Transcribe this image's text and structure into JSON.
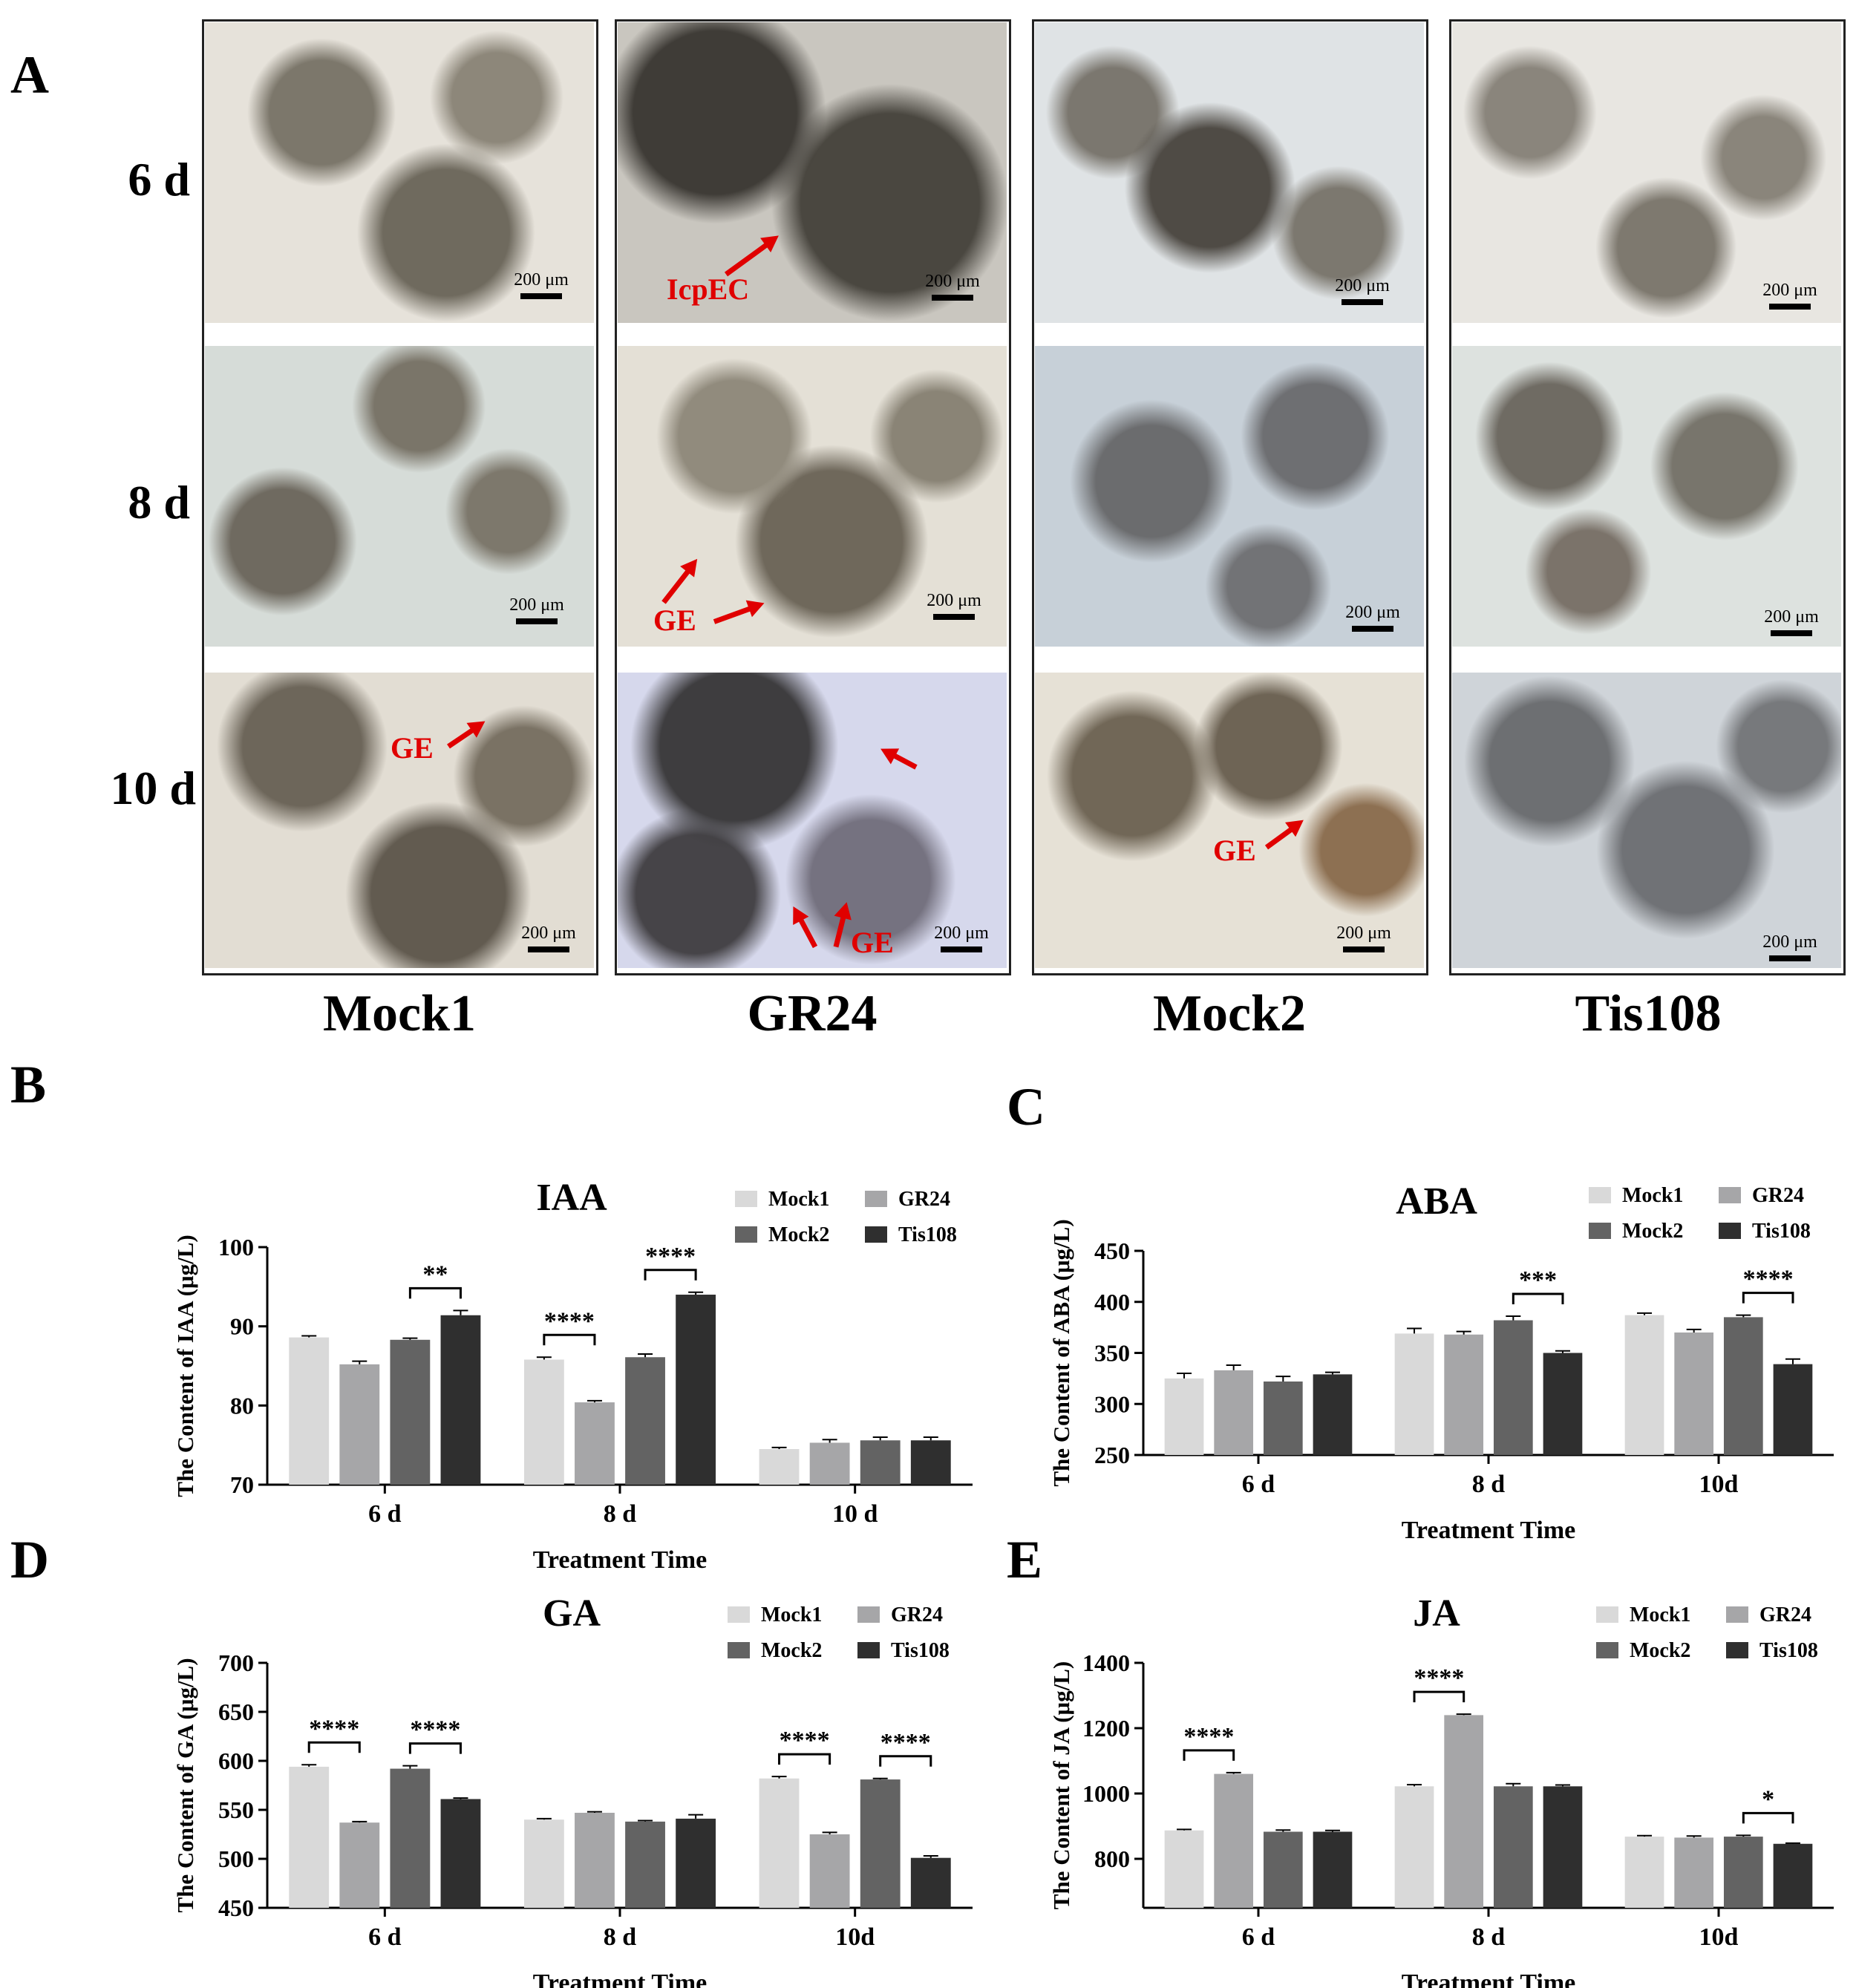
{
  "panel_letters": {
    "a": "A",
    "b": "B",
    "c": "C",
    "d": "D",
    "e": "E"
  },
  "rows": [
    "6 d",
    "8 d",
    "10 d"
  ],
  "columns": [
    "Mock1",
    "GR24",
    "Mock2",
    "Tis108"
  ],
  "scale_bar": "200 μm",
  "annotations": {
    "icpec": "IcpEC",
    "ge": "GE"
  },
  "colors": {
    "Mock1": "#d9d9d9",
    "GR24": "#a6a6a8",
    "Mock2": "#636363",
    "Tis108": "#2f2f2f"
  },
  "chart_data": [
    {
      "type": "bar",
      "panel": "B",
      "title": "IAA",
      "ylabel": "The Content of IAA (μg/L)",
      "xlabel": "Treatment Time",
      "ylim": [
        70,
        100
      ],
      "yticks": [
        70,
        80,
        90,
        100
      ],
      "categories": [
        "6 d",
        "8 d",
        "10 d"
      ],
      "series": [
        {
          "name": "Mock1",
          "values": [
            88.6,
            85.8,
            74.5
          ],
          "err": [
            0.2,
            0.3,
            0.2
          ]
        },
        {
          "name": "GR24",
          "values": [
            85.2,
            80.4,
            75.3
          ],
          "err": [
            0.4,
            0.2,
            0.4
          ]
        },
        {
          "name": "Mock2",
          "values": [
            88.3,
            86.1,
            75.6
          ],
          "err": [
            0.2,
            0.4,
            0.4
          ]
        },
        {
          "name": "Tis108",
          "values": [
            91.4,
            94.0,
            75.6
          ],
          "err": [
            0.6,
            0.3,
            0.4
          ]
        }
      ],
      "significance": [
        {
          "cat": 0,
          "from": 2,
          "to": 3,
          "label": "**"
        },
        {
          "cat": 1,
          "from": 0,
          "to": 1,
          "label": "****"
        },
        {
          "cat": 1,
          "from": 2,
          "to": 3,
          "label": "****"
        }
      ]
    },
    {
      "type": "bar",
      "panel": "C",
      "title": "ABA",
      "ylabel": "The Content of ABA (μg/L)",
      "xlabel": "Treatment Time",
      "ylim": [
        250,
        450
      ],
      "yticks": [
        250,
        300,
        350,
        400,
        450
      ],
      "categories": [
        "6 d",
        "8 d",
        "10d"
      ],
      "series": [
        {
          "name": "Mock1",
          "values": [
            325,
            369,
            387
          ],
          "err": [
            5,
            5,
            2
          ]
        },
        {
          "name": "GR24",
          "values": [
            333,
            368,
            370
          ],
          "err": [
            5,
            3,
            3
          ]
        },
        {
          "name": "Mock2",
          "values": [
            322,
            382,
            385
          ],
          "err": [
            5,
            4,
            2
          ]
        },
        {
          "name": "Tis108",
          "values": [
            329,
            350,
            339
          ],
          "err": [
            2,
            2,
            5
          ]
        }
      ],
      "significance": [
        {
          "cat": 1,
          "from": 2,
          "to": 3,
          "label": "***"
        },
        {
          "cat": 2,
          "from": 2,
          "to": 3,
          "label": "****"
        }
      ]
    },
    {
      "type": "bar",
      "panel": "D",
      "title": "GA",
      "ylabel": "The Content of GA (μg/L)",
      "xlabel": "Treatment Time",
      "ylim": [
        450,
        700
      ],
      "yticks": [
        450,
        500,
        550,
        600,
        650,
        700
      ],
      "categories": [
        "6 d",
        "8 d",
        "10d"
      ],
      "series": [
        {
          "name": "Mock1",
          "values": [
            594,
            540,
            582
          ],
          "err": [
            2,
            1,
            2
          ]
        },
        {
          "name": "GR24",
          "values": [
            537,
            547,
            525
          ],
          "err": [
            1,
            1,
            2
          ]
        },
        {
          "name": "Mock2",
          "values": [
            592,
            538,
            581
          ],
          "err": [
            3,
            1,
            1
          ]
        },
        {
          "name": "Tis108",
          "values": [
            561,
            541,
            501
          ],
          "err": [
            1,
            4,
            2
          ]
        }
      ],
      "significance": [
        {
          "cat": 0,
          "from": 0,
          "to": 1,
          "label": "****"
        },
        {
          "cat": 0,
          "from": 2,
          "to": 3,
          "label": "****"
        },
        {
          "cat": 2,
          "from": 0,
          "to": 1,
          "label": "****"
        },
        {
          "cat": 2,
          "from": 2,
          "to": 3,
          "label": "****"
        }
      ]
    },
    {
      "type": "bar",
      "panel": "E",
      "title": "JA",
      "ylabel": "The Content of JA (μg/L)",
      "xlabel": "Treatment Time",
      "ylim": [
        650,
        1400
      ],
      "yticks": [
        800,
        1000,
        1200,
        1400
      ],
      "categories": [
        "6 d",
        "8 d",
        "10d"
      ],
      "series": [
        {
          "name": "Mock1",
          "values": [
            887,
            1022,
            868
          ],
          "err": [
            3,
            5,
            3
          ]
        },
        {
          "name": "GR24",
          "values": [
            1060,
            1240,
            865
          ],
          "err": [
            4,
            3,
            5
          ]
        },
        {
          "name": "Mock2",
          "values": [
            883,
            1022,
            868
          ],
          "err": [
            5,
            8,
            4
          ]
        },
        {
          "name": "Tis108",
          "values": [
            883,
            1022,
            846
          ],
          "err": [
            4,
            4,
            2
          ]
        }
      ],
      "significance": [
        {
          "cat": 0,
          "from": 0,
          "to": 1,
          "label": "****"
        },
        {
          "cat": 1,
          "from": 0,
          "to": 1,
          "label": "****"
        },
        {
          "cat": 2,
          "from": 2,
          "to": 3,
          "label": "*"
        }
      ]
    }
  ]
}
